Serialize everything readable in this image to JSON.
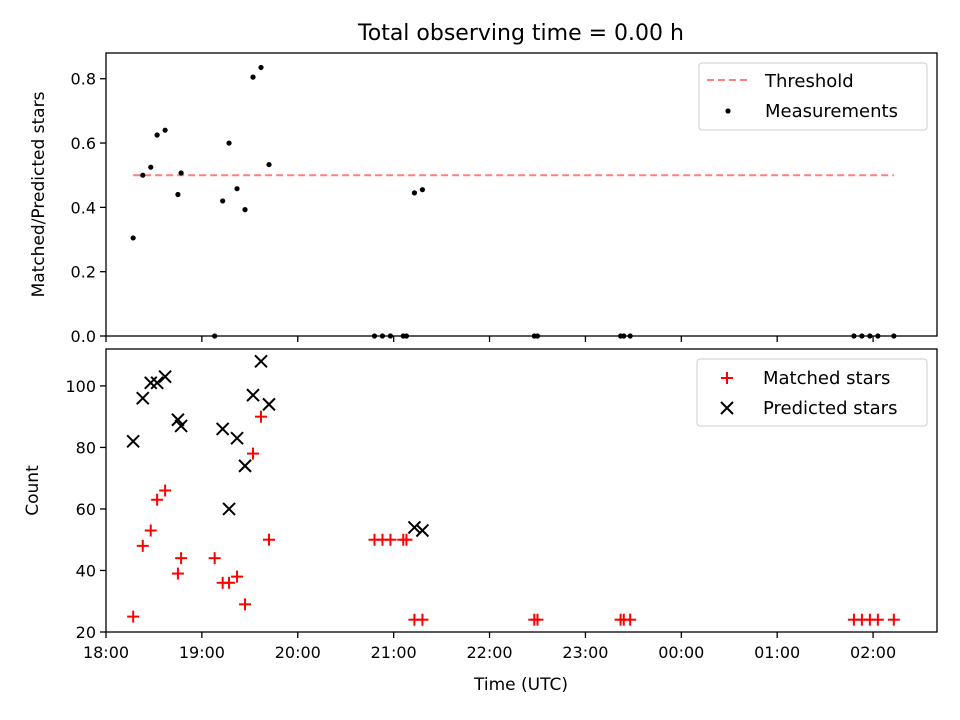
{
  "chart_data": [
    {
      "type": "scatter",
      "title": "Total observing time = 0.00 h",
      "xlabel": "",
      "ylabel": "Matched/Predicted stars",
      "xlim": [
        "18:00",
        "02:40"
      ],
      "ylim": [
        0,
        0.88
      ],
      "y_ticks": [
        "0.0",
        "0.2",
        "0.4",
        "0.6",
        "0.8"
      ],
      "grid": false,
      "legend": {
        "position": "top-right",
        "entries": [
          "Threshold",
          "Measurements"
        ]
      },
      "series": [
        {
          "name": "Threshold",
          "style": "dashed-line",
          "color": "#ff7f7f",
          "points": [
            [
              "18:17",
              0.5
            ],
            [
              "02:13",
              0.5
            ]
          ]
        },
        {
          "name": "Measurements",
          "style": "dot",
          "color": "#000000",
          "points": [
            [
              "18:17",
              0.305
            ],
            [
              "18:23",
              0.5
            ],
            [
              "18:28",
              0.525
            ],
            [
              "18:32",
              0.625
            ],
            [
              "18:37",
              0.64
            ],
            [
              "18:45",
              0.44
            ],
            [
              "18:47",
              0.507
            ],
            [
              "19:08",
              0.0
            ],
            [
              "19:13",
              0.42
            ],
            [
              "19:17",
              0.6
            ],
            [
              "19:22",
              0.458
            ],
            [
              "19:27",
              0.393
            ],
            [
              "19:32",
              0.805
            ],
            [
              "19:37",
              0.835
            ],
            [
              "19:42",
              0.533
            ],
            [
              "20:48",
              0.0
            ],
            [
              "20:53",
              0.0
            ],
            [
              "20:58",
              0.0
            ],
            [
              "21:06",
              0.0
            ],
            [
              "21:08",
              0.0
            ],
            [
              "21:13",
              0.445
            ],
            [
              "21:18",
              0.455
            ],
            [
              "22:28",
              0.0
            ],
            [
              "22:30",
              0.0
            ],
            [
              "23:22",
              0.0
            ],
            [
              "23:24",
              0.0
            ],
            [
              "23:28",
              0.0
            ],
            [
              "01:48",
              0.0
            ],
            [
              "01:53",
              0.0
            ],
            [
              "01:58",
              0.0
            ],
            [
              "02:03",
              0.0
            ],
            [
              "02:13",
              0.0
            ]
          ]
        }
      ]
    },
    {
      "type": "scatter",
      "title": "",
      "xlabel": "Time (UTC)",
      "ylabel": "Count",
      "xlim": [
        "18:00",
        "02:40"
      ],
      "ylim": [
        20,
        112
      ],
      "x_ticks": [
        "18:00",
        "19:00",
        "20:00",
        "21:00",
        "22:00",
        "23:00",
        "00:00",
        "01:00",
        "02:00"
      ],
      "y_ticks": [
        "20",
        "40",
        "60",
        "80",
        "100"
      ],
      "grid": false,
      "legend": {
        "position": "top-right",
        "entries": [
          "Matched stars",
          "Predicted stars"
        ]
      },
      "series": [
        {
          "name": "Matched stars",
          "marker": "plus",
          "color": "#ff0000",
          "points": [
            [
              "18:17",
              25
            ],
            [
              "18:23",
              48
            ],
            [
              "18:28",
              53
            ],
            [
              "18:32",
              63
            ],
            [
              "18:37",
              66
            ],
            [
              "18:45",
              39
            ],
            [
              "18:47",
              44
            ],
            [
              "19:08",
              44
            ],
            [
              "19:13",
              36
            ],
            [
              "19:17",
              36
            ],
            [
              "19:22",
              38
            ],
            [
              "19:27",
              29
            ],
            [
              "19:32",
              78
            ],
            [
              "19:37",
              90
            ],
            [
              "19:42",
              50
            ],
            [
              "20:48",
              50
            ],
            [
              "20:53",
              50
            ],
            [
              "20:58",
              50
            ],
            [
              "21:06",
              50
            ],
            [
              "21:08",
              50
            ],
            [
              "21:13",
              24
            ],
            [
              "21:18",
              24
            ],
            [
              "22:28",
              24
            ],
            [
              "22:30",
              24
            ],
            [
              "23:22",
              24
            ],
            [
              "23:24",
              24
            ],
            [
              "23:28",
              24
            ],
            [
              "01:48",
              24
            ],
            [
              "01:53",
              24
            ],
            [
              "01:58",
              24
            ],
            [
              "02:03",
              24
            ],
            [
              "02:13",
              24
            ]
          ]
        },
        {
          "name": "Predicted stars",
          "marker": "x",
          "color": "#000000",
          "points": [
            [
              "18:17",
              82
            ],
            [
              "18:23",
              96
            ],
            [
              "18:28",
              101
            ],
            [
              "18:32",
              101
            ],
            [
              "18:37",
              103
            ],
            [
              "18:45",
              89
            ],
            [
              "18:47",
              87
            ],
            [
              "19:13",
              86
            ],
            [
              "19:17",
              60
            ],
            [
              "19:22",
              83
            ],
            [
              "19:27",
              74
            ],
            [
              "19:32",
              97
            ],
            [
              "19:37",
              108
            ],
            [
              "19:42",
              94
            ],
            [
              "21:13",
              54
            ],
            [
              "21:18",
              53
            ]
          ]
        }
      ]
    }
  ]
}
